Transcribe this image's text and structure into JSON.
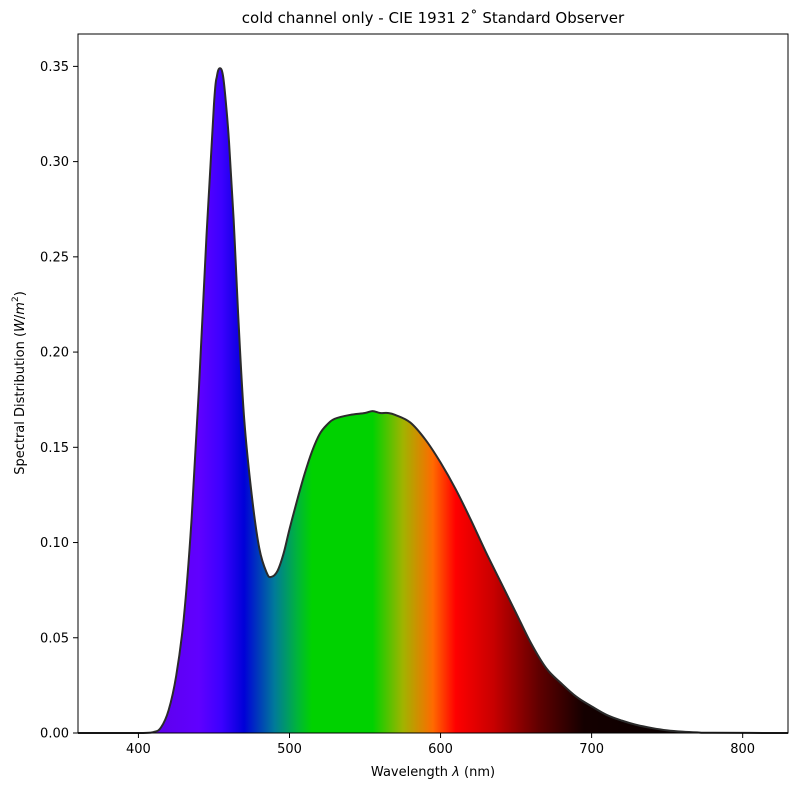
{
  "chart_data": {
    "type": "area",
    "title": "cold channel only - CIE 1931 2˚ Standard Observer",
    "xlabel": "Wavelength λ (nm)",
    "xlabel_parts": [
      "Wavelength ",
      "λ",
      " (nm)"
    ],
    "ylabel": "Spectral Distribution (W/m²)",
    "ylabel_parts": [
      "Spectral Distribution (",
      "W",
      "/",
      "m",
      "2",
      ")"
    ],
    "xlim": [
      360,
      830
    ],
    "ylim": [
      0,
      0.367
    ],
    "xticks": [
      400,
      500,
      600,
      700,
      800
    ],
    "xtick_labels": [
      "400",
      "500",
      "600",
      "700",
      "800"
    ],
    "yticks": [
      0.0,
      0.05,
      0.1,
      0.15,
      0.2,
      0.25,
      0.3,
      0.35
    ],
    "ytick_labels": [
      "0.00",
      "0.05",
      "0.10",
      "0.15",
      "0.20",
      "0.25",
      "0.30",
      "0.35"
    ],
    "grid": false,
    "legend": "none",
    "line_color": "#2b2b2b",
    "series": [
      {
        "x": [
          360,
          400,
          410,
          415,
          420,
          425,
          430,
          435,
          440,
          445,
          450,
          452,
          454,
          456,
          458,
          460,
          463,
          466,
          470,
          475,
          480,
          485,
          488,
          492,
          496,
          500,
          505,
          510,
          515,
          520,
          525,
          530,
          540,
          550,
          555,
          560,
          565,
          570,
          580,
          590,
          600,
          610,
          620,
          630,
          640,
          650,
          660,
          670,
          680,
          690,
          700,
          710,
          720,
          730,
          740,
          750,
          760,
          770,
          780,
          830
        ],
        "y": [
          0.0,
          0.0,
          0.0005,
          0.003,
          0.012,
          0.03,
          0.06,
          0.11,
          0.18,
          0.26,
          0.33,
          0.345,
          0.349,
          0.345,
          0.33,
          0.31,
          0.27,
          0.22,
          0.165,
          0.125,
          0.097,
          0.084,
          0.082,
          0.085,
          0.094,
          0.107,
          0.122,
          0.136,
          0.148,
          0.157,
          0.162,
          0.165,
          0.167,
          0.168,
          0.169,
          0.168,
          0.168,
          0.167,
          0.163,
          0.154,
          0.142,
          0.128,
          0.112,
          0.095,
          0.079,
          0.063,
          0.047,
          0.034,
          0.026,
          0.019,
          0.014,
          0.0095,
          0.0065,
          0.0042,
          0.0026,
          0.0014,
          0.0007,
          0.0003,
          0.0001,
          0.0
        ]
      }
    ],
    "spectrum_colors": [
      {
        "nm": 360,
        "color": "#5a00c8"
      },
      {
        "nm": 440,
        "color": "#6000ff"
      },
      {
        "nm": 455,
        "color": "#3c00ff"
      },
      {
        "nm": 470,
        "color": "#0000d8"
      },
      {
        "nm": 490,
        "color": "#007a9a"
      },
      {
        "nm": 505,
        "color": "#00b43c"
      },
      {
        "nm": 515,
        "color": "#00d200"
      },
      {
        "nm": 555,
        "color": "#00d200"
      },
      {
        "nm": 575,
        "color": "#a0b400"
      },
      {
        "nm": 595,
        "color": "#ff6a00"
      },
      {
        "nm": 610,
        "color": "#ff0000"
      },
      {
        "nm": 635,
        "color": "#c80000"
      },
      {
        "nm": 665,
        "color": "#600000"
      },
      {
        "nm": 695,
        "color": "#140000"
      },
      {
        "nm": 830,
        "color": "#000000"
      }
    ]
  }
}
